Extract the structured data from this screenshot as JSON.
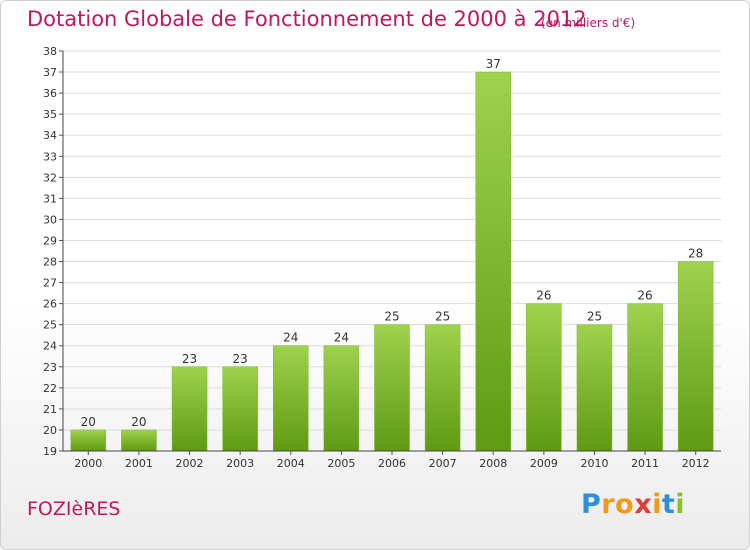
{
  "title": "Dotation Globale de Fonctionnement de 2000 à 2012",
  "subtitle": "(en milliers d'€)",
  "place": "FOZIèRES",
  "logo": {
    "letters": [
      "P",
      "r",
      "o",
      "x",
      "i",
      "t",
      "i"
    ],
    "colors": [
      "#2f8fd6",
      "#f09a1a",
      "#f09a1a",
      "#e43a3a",
      "#f09a1a",
      "#2f8fd6",
      "#8cbf2a"
    ]
  },
  "colors": {
    "bar_top": "#9fd24d",
    "bar_bottom": "#5f9a12",
    "title": "#c0185f"
  },
  "chart_data": {
    "type": "bar",
    "title": "Dotation Globale de Fonctionnement de 2000 à 2012",
    "subtitle": "(en milliers d'€)",
    "categories": [
      "2000",
      "2001",
      "2002",
      "2003",
      "2004",
      "2005",
      "2006",
      "2007",
      "2008",
      "2009",
      "2010",
      "2011",
      "2012"
    ],
    "values": [
      20,
      20,
      23,
      23,
      24,
      24,
      25,
      25,
      37,
      26,
      25,
      26,
      28
    ],
    "data_labels": [
      "20",
      "20",
      "23",
      "23",
      "24",
      "24",
      "25",
      "25",
      "37",
      "26",
      "25",
      "26",
      "28"
    ],
    "yticks": [
      "19",
      "20",
      "21",
      "22",
      "23",
      "24",
      "25",
      "26",
      "27",
      "28",
      "29",
      "30",
      "31",
      "32",
      "33",
      "34",
      "35",
      "36",
      "37",
      "38"
    ],
    "ylim": [
      19,
      38
    ],
    "grid": true,
    "xlabel": "",
    "ylabel": ""
  }
}
